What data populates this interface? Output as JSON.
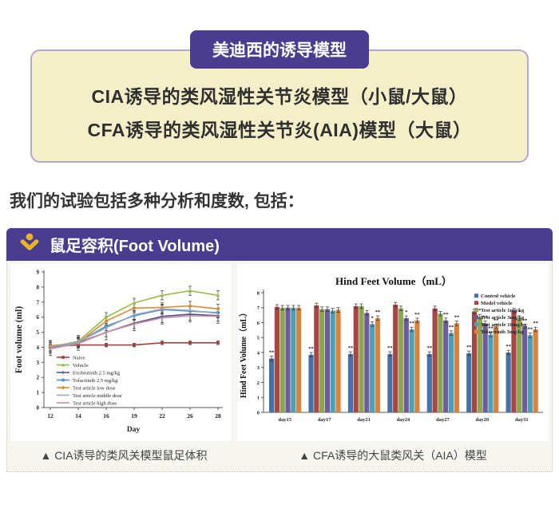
{
  "banner": {
    "title": "美迪西的诱导模型",
    "lines": [
      "CIA诱导的类风湿性关节炎模型（小鼠/大鼠）",
      "CFA诱导的类风湿性关节炎(AIA)模型（大鼠）"
    ]
  },
  "intro": "我们的试验包括多种分析和度数, 包括：",
  "section": {
    "title": "鼠足容积(Foot Volume)",
    "icon": "person-chevron-icon"
  },
  "captions": {
    "left": "▲ CIA诱导的类风关模型鼠足体积",
    "right": "▲ CFA诱导的大鼠类风关（AIA）模型"
  },
  "colors": {
    "accent_purple": "#4a3c90",
    "banner_fill": "#f5efc9",
    "banner_border": "#b3a6cf",
    "icon_yellow": "#eab525",
    "section_bg": "#f7f5f0"
  },
  "chart_data": [
    {
      "type": "line",
      "title": "",
      "xlabel": "Day",
      "ylabel": "Foot volume (ml)",
      "x": [
        12,
        14,
        16,
        19,
        22,
        26,
        28
      ],
      "ylim": [
        0,
        9
      ],
      "grid": false,
      "legend_position": "lower-left-inside",
      "series": [
        {
          "name": "Naive",
          "color": "#a2403a",
          "marker": "square",
          "err": 0.12,
          "values": [
            4.05,
            4.15,
            4.15,
            4.15,
            4.3,
            4.3,
            4.3
          ]
        },
        {
          "name": "Vehicle",
          "color": "#9cb944",
          "marker": "triangle",
          "err": 0.3,
          "values": [
            4.0,
            4.4,
            6.0,
            6.95,
            7.45,
            7.75,
            7.45
          ]
        },
        {
          "name": "Evobrutinib 2.5 mg/kg",
          "color": "#5a4e93",
          "marker": "plus",
          "err": 0.5,
          "values": [
            3.95,
            4.3,
            5.0,
            5.6,
            6.05,
            6.2,
            6.1
          ]
        },
        {
          "name": "Tofacitinib 2.5 mg/kg",
          "color": "#4a8fc2",
          "marker": "star",
          "err": 0.3,
          "values": [
            4.0,
            4.35,
            5.4,
            6.1,
            6.5,
            6.4,
            6.3
          ]
        },
        {
          "name": "Test article low dose",
          "color": "#dd8a33",
          "marker": "diamond",
          "err": 0.3,
          "values": [
            4.1,
            4.3,
            5.75,
            6.6,
            6.65,
            6.75,
            6.55
          ]
        },
        {
          "name": "Test article middle dose",
          "color": "#93a9c0",
          "marker": "none",
          "err": 0.3,
          "values": [
            4.0,
            4.35,
            5.3,
            6.15,
            6.55,
            6.45,
            6.25
          ]
        },
        {
          "name": "Test article high dose",
          "color": "#c98da0",
          "marker": "none",
          "err": 0.3,
          "values": [
            3.9,
            4.25,
            5.0,
            5.55,
            5.95,
            6.1,
            6.05
          ]
        }
      ]
    },
    {
      "type": "bar",
      "title": "Hind Feet Volume（mL）",
      "ylabel": "Hind Feet Volume（mL）",
      "categories": [
        "day15",
        "day17",
        "day21",
        "day24",
        "day27",
        "day29",
        "day31"
      ],
      "ylim": [
        0,
        8
      ],
      "err": 0.15,
      "grid": false,
      "legend_position": "top-right",
      "series": [
        {
          "name": "Control vehicle",
          "color": "#4472a8",
          "values": [
            3.6,
            3.85,
            3.9,
            3.9,
            3.9,
            3.95,
            4.0
          ]
        },
        {
          "name": "Model vehicle",
          "color": "#a94643",
          "values": [
            7.05,
            7.15,
            7.1,
            7.2,
            6.95,
            6.75,
            6.8
          ]
        },
        {
          "name": "Test article 1mg/kg",
          "color": "#8aa650",
          "values": [
            7.0,
            6.9,
            7.1,
            6.95,
            6.6,
            6.4,
            6.3
          ]
        },
        {
          "name": "Test article 3mg/kg",
          "color": "#6f5b9a",
          "values": [
            7.0,
            6.9,
            6.65,
            6.3,
            6.15,
            5.95,
            5.75
          ]
        },
        {
          "name": "Test article 10mg/kg",
          "color": "#4aa0b5",
          "values": [
            7.0,
            6.8,
            5.9,
            5.55,
            5.3,
            5.2,
            5.15
          ]
        },
        {
          "name": "Tofacitinib 3mg/kg",
          "color": "#d9823b",
          "values": [
            7.0,
            6.85,
            6.3,
            6.15,
            5.95,
            5.75,
            5.55
          ]
        }
      ],
      "significance": [
        [
          "**",
          "",
          "",
          "",
          "",
          ""
        ],
        [
          "**",
          "",
          "",
          "",
          "",
          ""
        ],
        [
          "**",
          "",
          "",
          "",
          "*",
          "**"
        ],
        [
          "**",
          "",
          "",
          "*",
          "**",
          "**"
        ],
        [
          "**",
          "",
          "",
          "**",
          "**",
          "**"
        ],
        [
          "**",
          "",
          "*",
          "**",
          "**",
          "**"
        ],
        [
          "**",
          "",
          "*",
          "**",
          "**",
          "**"
        ]
      ]
    }
  ]
}
